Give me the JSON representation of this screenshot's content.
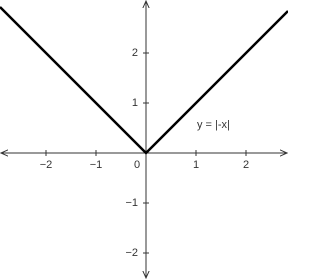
{
  "chart_data": {
    "type": "line",
    "x": [
      -2.92,
      0,
      2.84
    ],
    "series": [
      {
        "name": "y = |-x|",
        "color": "#000000",
        "values": [
          2.92,
          0,
          2.84
        ]
      }
    ],
    "xlim": [
      -2.92,
      2.84
    ],
    "ylim": [
      -2.52,
      3.06
    ],
    "xticks": [
      {
        "value": -2,
        "label": "−2"
      },
      {
        "value": -1,
        "label": "−1"
      },
      0,
      1,
      2
    ],
    "yticks": [
      {
        "value": -2,
        "label": "−2"
      },
      {
        "value": -1,
        "label": "−1"
      },
      1,
      2
    ],
    "grid": false
  }
}
